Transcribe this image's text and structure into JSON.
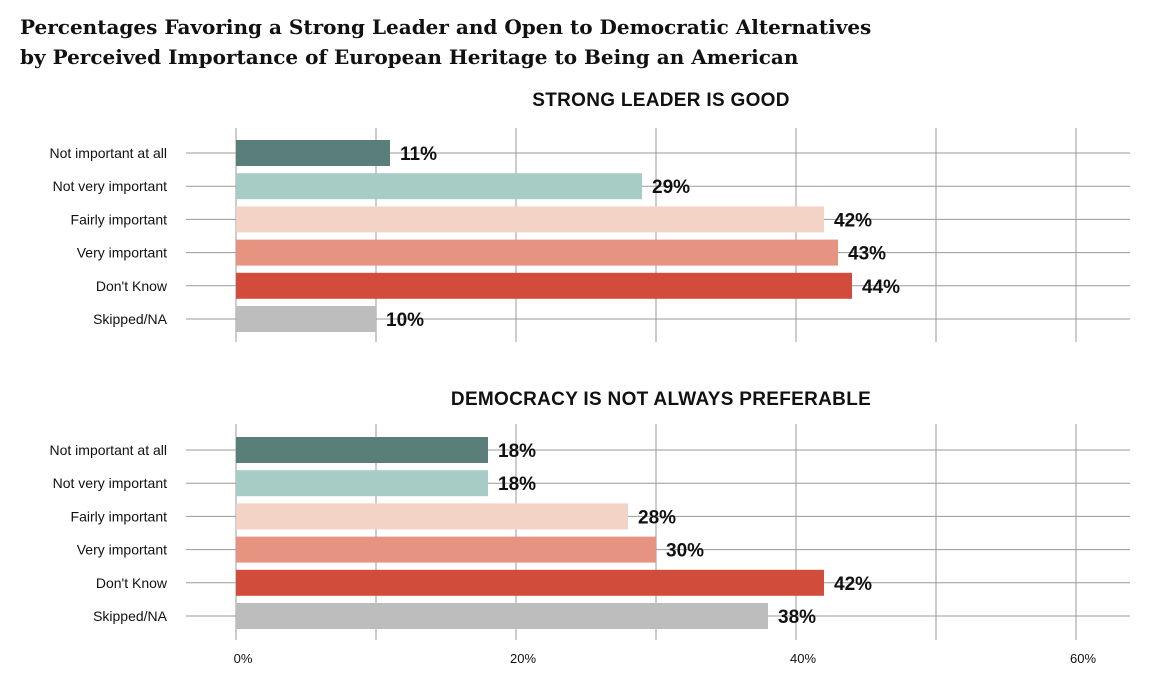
{
  "title": {
    "line1": "Percentages Favoring a Strong Leader and Open to Democratic Alternatives",
    "line2": "by Perceived Importance of European Heritage to Being an American"
  },
  "colors": {
    "Not important at all": "#5a7f7b",
    "Not very important": "#a7cbc5",
    "Fairly important": "#f3d3c6",
    "Very important": "#e69382",
    "Don't Know": "#d24c3c",
    "Skipped/NA": "#bdbdbd"
  },
  "chart_data": [
    {
      "type": "bar",
      "orientation": "horizontal",
      "title": "STRONG LEADER IS GOOD",
      "categories": [
        "Not important at all",
        "Not very important",
        "Fairly important",
        "Very important",
        "Don't Know",
        "Skipped/NA"
      ],
      "values": [
        11,
        29,
        42,
        43,
        44,
        10
      ],
      "value_labels": [
        "11%",
        "29%",
        "42%",
        "43%",
        "44%",
        "10%"
      ],
      "xlim": [
        0,
        60
      ],
      "grid": true
    },
    {
      "type": "bar",
      "orientation": "horizontal",
      "title": "DEMOCRACY IS NOT ALWAYS PREFERABLE",
      "categories": [
        "Not important at all",
        "Not very important",
        "Fairly important",
        "Very important",
        "Don't Know",
        "Skipped/NA"
      ],
      "values": [
        18,
        18,
        28,
        30,
        42,
        38
      ],
      "value_labels": [
        "18%",
        "18%",
        "28%",
        "30%",
        "42%",
        "38%"
      ],
      "xlim": [
        0,
        60
      ],
      "xticks": [
        0,
        20,
        40,
        60
      ],
      "xtick_labels": [
        "0%",
        "20%",
        "40%",
        "60%"
      ],
      "grid": true
    }
  ]
}
